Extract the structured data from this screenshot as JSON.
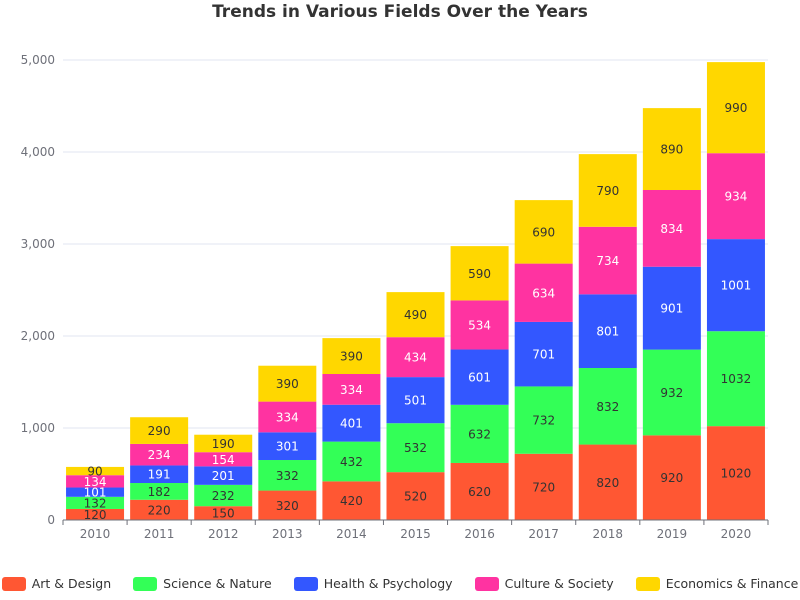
{
  "chart_data": {
    "type": "bar",
    "stacked": true,
    "title": "Trends in Various Fields Over the Years",
    "categories": [
      "2010",
      "2011",
      "2012",
      "2013",
      "2014",
      "2015",
      "2016",
      "2017",
      "2018",
      "2019",
      "2020"
    ],
    "ylim": [
      0,
      5000
    ],
    "yticks": [
      0,
      1000,
      2000,
      3000,
      4000,
      5000
    ],
    "ytick_labels": [
      "0",
      "1,000",
      "2,000",
      "3,000",
      "4,000",
      "5,000"
    ],
    "grid": true,
    "legend_position": "bottom",
    "series": [
      {
        "name": "Art & Design",
        "color": "#FF5733",
        "label_color": "#333333",
        "values": [
          120,
          220,
          150,
          320,
          420,
          520,
          620,
          720,
          820,
          920,
          1020
        ]
      },
      {
        "name": "Science & Nature",
        "color": "#33FF57",
        "label_color": "#333333",
        "values": [
          132,
          182,
          232,
          332,
          432,
          532,
          632,
          732,
          832,
          932,
          1032
        ]
      },
      {
        "name": "Health & Psychology",
        "color": "#3357FF",
        "label_color": "#ffffff",
        "values": [
          101,
          191,
          201,
          301,
          401,
          501,
          601,
          701,
          801,
          901,
          1001
        ]
      },
      {
        "name": "Culture & Society",
        "color": "#FF33A1",
        "label_color": "#ffffff",
        "values": [
          134,
          234,
          154,
          334,
          334,
          434,
          534,
          634,
          734,
          834,
          934
        ]
      },
      {
        "name": "Economics & Finance",
        "color": "#FFD700",
        "label_color": "#333333",
        "values": [
          90,
          290,
          190,
          390,
          390,
          490,
          590,
          690,
          790,
          890,
          990
        ]
      }
    ]
  }
}
